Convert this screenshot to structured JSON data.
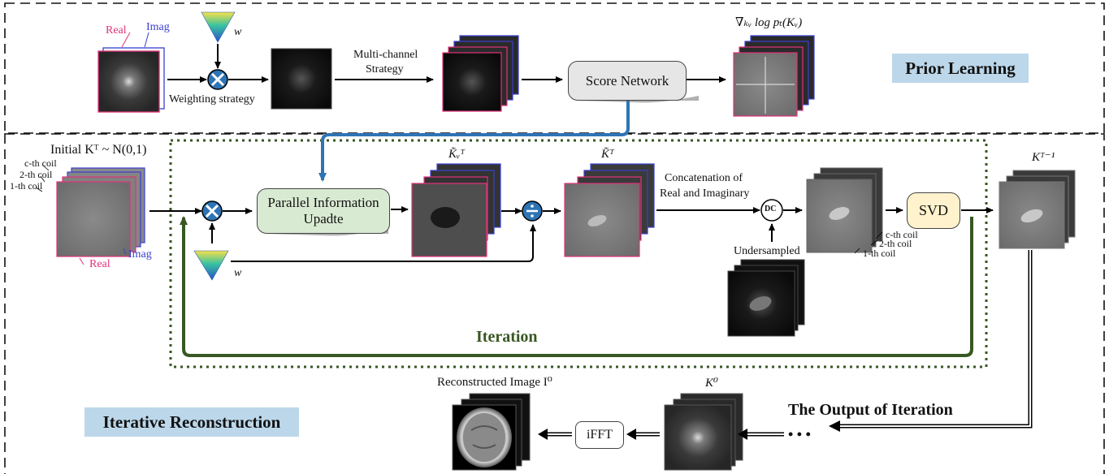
{
  "sections": {
    "prior_learning": "Prior Learning",
    "iterative_reconstruction": "Iterative Reconstruction"
  },
  "prior": {
    "real": "Real",
    "imag": "Imag",
    "w": "w",
    "weighting": "Weighting strategy",
    "multichannel_1": "Multi-channel",
    "multichannel_2": "Strategy",
    "score_network": "Score Network",
    "gradient": "∇ₖᵥ log pₜ(Kᵥ)"
  },
  "recon": {
    "initial": "Initial  Kᵀ ~ N(0,1)",
    "c_coil": "c-th coil",
    "coil2": "2-th coil",
    "coil1": "1-th coil",
    "real": "Real",
    "imag": "Imag",
    "w": "w",
    "parallel_1": "Parallel Information",
    "parallel_2": "Upadte",
    "kw_tilde": "K̃ᵥᵀ",
    "k_tilde": "K̃ᵀ",
    "concat_1": "Concatenation of",
    "concat_2": "Real and Imaginary",
    "dc": "DC",
    "undersampled": "Undersampled",
    "svd": "SVD",
    "c_coil2": "c-th coil",
    "coil2_2": "2-th coil",
    "coil1_2": "1-th coil",
    "k_prev": "Kᵀ⁻¹",
    "iteration": "Iteration",
    "output": "The Output of Iteration",
    "dots": "• • •",
    "k0": "K⁰",
    "ifft": "iFFT",
    "reconstructed": "Reconstructed Image I⁰"
  },
  "colors": {
    "real": "#e0337a",
    "imag": "#3a3fd0",
    "blue_arrow": "#2e74b5",
    "green_loop": "#385723",
    "tag_bg": "#bcd7ea",
    "score_box": "#e6e6e6",
    "parallel_box": "#d9ead3",
    "svd_box": "#fff2cc"
  }
}
